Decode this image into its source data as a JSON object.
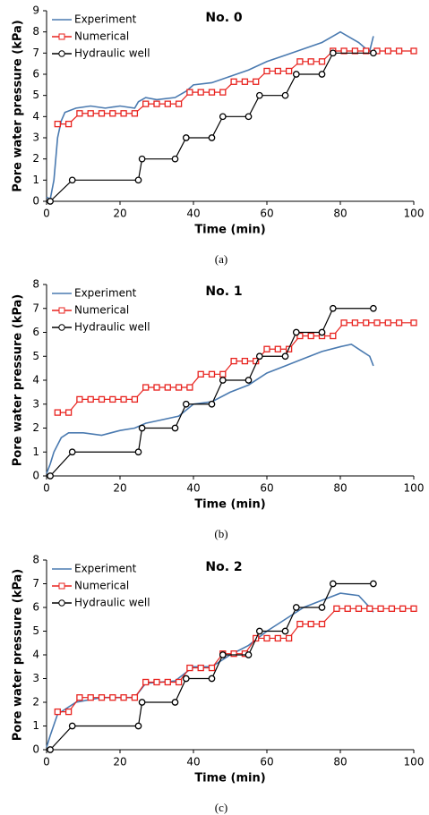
{
  "chart_data": [
    {
      "type": "line",
      "title": "No. 0",
      "caption": "(a)",
      "x_label": "Time (min)",
      "y_label": "Pore water pressure (kPa)",
      "xlim": [
        0,
        100
      ],
      "xticks": [
        0,
        20,
        40,
        60,
        80,
        100
      ],
      "ylim": [
        0,
        9
      ],
      "yticks": [
        0,
        1,
        2,
        3,
        4,
        5,
        6,
        7,
        8,
        9
      ],
      "legend": "upper-left",
      "series": [
        {
          "name": "Experiment",
          "color": "#4a7ab0",
          "marker": "none",
          "x": [
            0,
            1,
            2,
            3,
            4,
            5,
            8,
            12,
            16,
            20,
            24,
            25,
            27,
            30,
            35,
            38,
            40,
            45,
            50,
            55,
            60,
            65,
            70,
            75,
            78,
            80,
            82,
            85,
            87,
            88,
            89
          ],
          "values": [
            0.2,
            0.1,
            1.0,
            3.0,
            3.8,
            4.2,
            4.4,
            4.5,
            4.4,
            4.5,
            4.4,
            4.7,
            4.9,
            4.8,
            4.9,
            5.2,
            5.5,
            5.6,
            5.9,
            6.2,
            6.6,
            6.9,
            7.2,
            7.5,
            7.8,
            8.0,
            7.8,
            7.5,
            7.2,
            7.1,
            7.8
          ]
        },
        {
          "name": "Numerical",
          "color": "#e8231f",
          "marker": "square",
          "x": [
            3,
            6,
            9,
            12,
            15,
            18,
            21,
            24,
            27,
            30,
            33,
            36,
            39,
            42,
            45,
            48,
            51,
            54,
            57,
            60,
            63,
            66,
            69,
            72,
            75,
            78,
            81,
            84,
            87,
            90,
            93,
            96,
            100
          ],
          "values": [
            3.65,
            3.65,
            4.15,
            4.15,
            4.15,
            4.15,
            4.15,
            4.15,
            4.6,
            4.6,
            4.6,
            4.6,
            5.15,
            5.15,
            5.15,
            5.15,
            5.65,
            5.65,
            5.65,
            6.15,
            6.15,
            6.15,
            6.6,
            6.6,
            6.6,
            7.1,
            7.1,
            7.1,
            7.1,
            7.1,
            7.1,
            7.1,
            7.1
          ]
        },
        {
          "name": "Hydraulic well",
          "color": "#000000",
          "marker": "circle",
          "x": [
            1,
            7,
            25,
            26,
            35,
            38,
            45,
            48,
            55,
            58,
            65,
            68,
            75,
            78,
            89
          ],
          "values": [
            0,
            1,
            1,
            2,
            2,
            3,
            3,
            4,
            4,
            5,
            5,
            6,
            6,
            7,
            7
          ]
        }
      ]
    },
    {
      "type": "line",
      "title": "No. 1",
      "caption": "(b)",
      "x_label": "Time (min)",
      "y_label": "Pore water pressure (kPa)",
      "xlim": [
        0,
        100
      ],
      "xticks": [
        0,
        20,
        40,
        60,
        80,
        100
      ],
      "ylim": [
        0,
        8
      ],
      "yticks": [
        0,
        1,
        2,
        3,
        4,
        5,
        6,
        7,
        8
      ],
      "legend": "upper-left",
      "series": [
        {
          "name": "Experiment",
          "color": "#4a7ab0",
          "marker": "none",
          "x": [
            0,
            1,
            2,
            4,
            6,
            10,
            15,
            20,
            24,
            27,
            30,
            36,
            40,
            45,
            50,
            55,
            60,
            65,
            70,
            75,
            80,
            83,
            86,
            88,
            89
          ],
          "values": [
            0.1,
            0.5,
            1.0,
            1.6,
            1.8,
            1.8,
            1.7,
            1.9,
            2.0,
            2.2,
            2.3,
            2.5,
            3.0,
            3.1,
            3.5,
            3.8,
            4.3,
            4.6,
            4.9,
            5.2,
            5.4,
            5.5,
            5.2,
            5.0,
            4.6
          ]
        },
        {
          "name": "Numerical",
          "color": "#e8231f",
          "marker": "square",
          "x": [
            3,
            6,
            9,
            12,
            15,
            18,
            21,
            24,
            27,
            30,
            33,
            36,
            39,
            42,
            45,
            48,
            51,
            54,
            57,
            60,
            63,
            66,
            69,
            72,
            75,
            78,
            81,
            84,
            87,
            90,
            93,
            96,
            100
          ],
          "values": [
            2.65,
            2.65,
            3.2,
            3.2,
            3.2,
            3.2,
            3.2,
            3.2,
            3.7,
            3.7,
            3.7,
            3.7,
            3.7,
            4.25,
            4.25,
            4.25,
            4.8,
            4.8,
            4.8,
            5.3,
            5.3,
            5.3,
            5.85,
            5.85,
            5.85,
            5.85,
            6.4,
            6.4,
            6.4,
            6.4,
            6.4,
            6.4,
            6.4
          ]
        },
        {
          "name": "Hydraulic well",
          "color": "#000000",
          "marker": "circle",
          "x": [
            1,
            7,
            25,
            26,
            35,
            38,
            45,
            48,
            55,
            58,
            65,
            68,
            75,
            78,
            89
          ],
          "values": [
            0,
            1,
            1,
            2,
            2,
            3,
            3,
            4,
            4,
            5,
            5,
            6,
            6,
            7,
            7
          ]
        }
      ]
    },
    {
      "type": "line",
      "title": "No. 2",
      "caption": "(c)",
      "x_label": "Time (min)",
      "y_label": "Pore water pressure (kPa)",
      "xlim": [
        0,
        100
      ],
      "xticks": [
        0,
        20,
        40,
        60,
        80,
        100
      ],
      "ylim": [
        0,
        8
      ],
      "yticks": [
        0,
        1,
        2,
        3,
        4,
        5,
        6,
        7,
        8
      ],
      "legend": "upper-left",
      "series": [
        {
          "name": "Experiment",
          "color": "#4a7ab0",
          "marker": "none",
          "x": [
            0,
            1,
            3,
            8,
            15,
            24,
            27,
            35,
            40,
            45,
            50,
            55,
            60,
            65,
            70,
            75,
            80,
            85,
            88,
            89
          ],
          "values": [
            0.1,
            0.6,
            1.5,
            2.0,
            2.2,
            2.2,
            2.8,
            2.9,
            3.5,
            3.5,
            4.0,
            4.4,
            5.0,
            5.5,
            6.0,
            6.3,
            6.6,
            6.5,
            6.0,
            5.8
          ]
        },
        {
          "name": "Numerical",
          "color": "#e8231f",
          "marker": "square",
          "x": [
            3,
            6,
            9,
            12,
            15,
            18,
            21,
            24,
            27,
            30,
            33,
            36,
            39,
            42,
            45,
            48,
            51,
            54,
            57,
            60,
            63,
            66,
            69,
            72,
            75,
            79,
            82,
            85,
            88,
            91,
            94,
            97,
            100
          ],
          "values": [
            1.6,
            1.6,
            2.2,
            2.2,
            2.2,
            2.2,
            2.2,
            2.2,
            2.85,
            2.85,
            2.85,
            2.85,
            3.45,
            3.45,
            3.45,
            4.05,
            4.05,
            4.05,
            4.7,
            4.7,
            4.7,
            4.7,
            5.3,
            5.3,
            5.3,
            5.95,
            5.95,
            5.95,
            5.95,
            5.95,
            5.95,
            5.95,
            5.95
          ]
        },
        {
          "name": "Hydraulic well",
          "color": "#000000",
          "marker": "circle",
          "x": [
            1,
            7,
            25,
            26,
            35,
            38,
            45,
            48,
            55,
            58,
            65,
            68,
            75,
            78,
            89
          ],
          "values": [
            0,
            1,
            1,
            2,
            2,
            3,
            3,
            4,
            4,
            5,
            5,
            6,
            6,
            7,
            7
          ]
        }
      ]
    }
  ]
}
